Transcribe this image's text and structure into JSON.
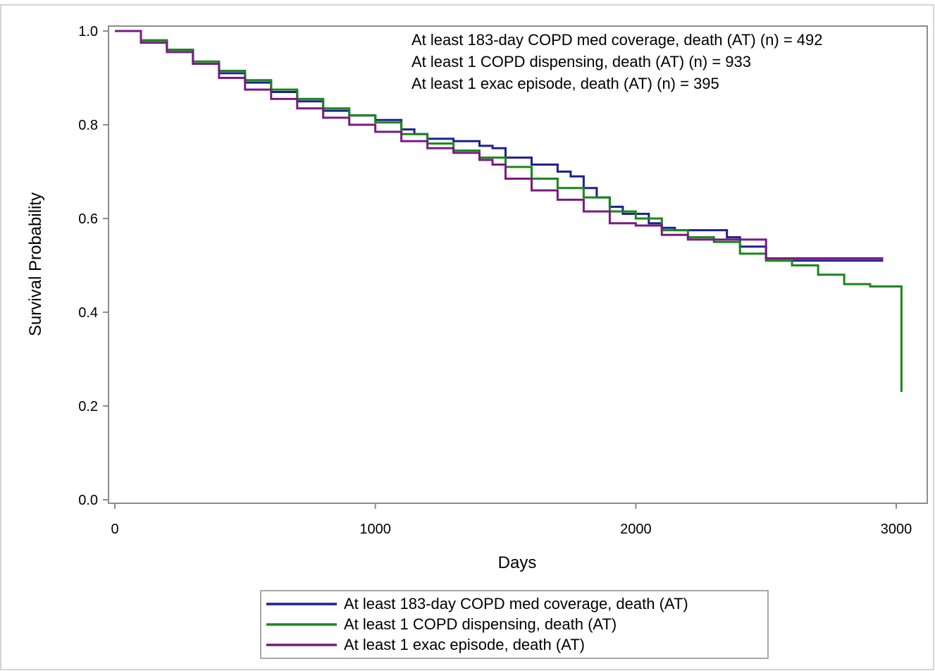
{
  "chart_data": {
    "type": "line",
    "step": true,
    "xlabel": "Days",
    "ylabel": "Survival Probability",
    "xlim": [
      0,
      3050
    ],
    "ylim": [
      0,
      1.0
    ],
    "xticks": [
      0,
      1000,
      2000,
      3000
    ],
    "yticks": [
      0.0,
      0.2,
      0.4,
      0.6,
      0.8,
      1.0
    ],
    "xtick_labels": [
      "0",
      "1000",
      "2000",
      "3000"
    ],
    "ytick_labels": [
      "0.0",
      "0.2",
      "0.4",
      "0.6",
      "0.8",
      "1.0"
    ],
    "grid": false,
    "legend_position": "bottom",
    "annotations": [
      "At least 183-day COPD med coverage, death (AT) (n) = 492",
      "At least 1 COPD dispensing, death (AT) (n) = 933",
      "At least 1 exac episode, death (AT) (n) = 395"
    ],
    "series": [
      {
        "name": "At least 183-day COPD med coverage, death (AT)",
        "color": "#1f1f8f",
        "x": [
          0,
          100,
          200,
          300,
          400,
          500,
          600,
          700,
          800,
          900,
          1000,
          1100,
          1150,
          1200,
          1300,
          1400,
          1450,
          1500,
          1600,
          1700,
          1750,
          1800,
          1850,
          1900,
          1950,
          2000,
          2050,
          2100,
          2150,
          2200,
          2300,
          2350,
          2400,
          2500,
          2950
        ],
        "y": [
          1.0,
          0.98,
          0.96,
          0.93,
          0.91,
          0.89,
          0.87,
          0.85,
          0.83,
          0.82,
          0.81,
          0.79,
          0.78,
          0.77,
          0.765,
          0.755,
          0.75,
          0.73,
          0.715,
          0.7,
          0.69,
          0.665,
          0.645,
          0.625,
          0.61,
          0.61,
          0.59,
          0.58,
          0.575,
          0.575,
          0.575,
          0.56,
          0.54,
          0.51,
          0.51
        ]
      },
      {
        "name": "At least 1 COPD dispensing, death (AT)",
        "color": "#198719",
        "x": [
          0,
          100,
          200,
          300,
          400,
          500,
          600,
          700,
          800,
          900,
          1000,
          1100,
          1200,
          1300,
          1400,
          1500,
          1600,
          1700,
          1800,
          1900,
          2000,
          2100,
          2200,
          2300,
          2400,
          2500,
          2600,
          2700,
          2800,
          2900,
          3000,
          3020
        ],
        "y": [
          1.0,
          0.98,
          0.96,
          0.935,
          0.915,
          0.895,
          0.875,
          0.855,
          0.835,
          0.82,
          0.805,
          0.78,
          0.76,
          0.745,
          0.73,
          0.71,
          0.685,
          0.665,
          0.645,
          0.615,
          0.6,
          0.575,
          0.56,
          0.55,
          0.525,
          0.51,
          0.5,
          0.48,
          0.46,
          0.455,
          0.455,
          0.23
        ]
      },
      {
        "name": "At least 1 exac episode, death (AT)",
        "color": "#7a1a82",
        "x": [
          0,
          100,
          200,
          300,
          400,
          500,
          600,
          700,
          800,
          900,
          1000,
          1100,
          1200,
          1300,
          1400,
          1450,
          1500,
          1600,
          1700,
          1800,
          1900,
          2000,
          2100,
          2200,
          2300,
          2400,
          2500,
          2950
        ],
        "y": [
          1.0,
          0.975,
          0.955,
          0.93,
          0.9,
          0.875,
          0.855,
          0.835,
          0.815,
          0.8,
          0.785,
          0.765,
          0.75,
          0.74,
          0.725,
          0.715,
          0.685,
          0.66,
          0.64,
          0.615,
          0.59,
          0.585,
          0.565,
          0.555,
          0.555,
          0.555,
          0.515,
          0.515
        ]
      }
    ]
  }
}
